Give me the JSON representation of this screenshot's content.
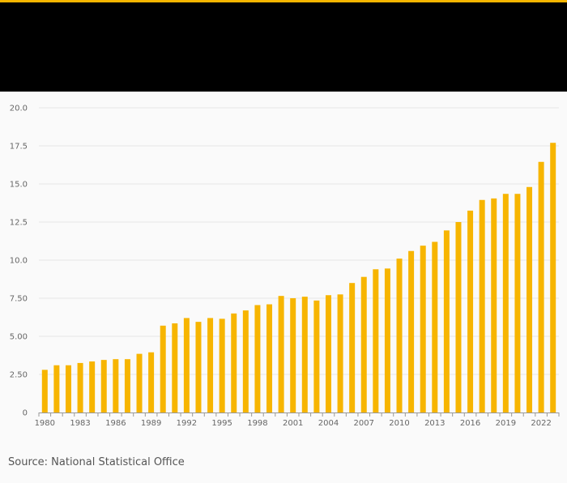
{
  "colors": {
    "accent": "#f7b500",
    "bar": "#f7b500",
    "header": "#000000",
    "grid": "#e6e6e6",
    "axis": "#999999"
  },
  "chart_data": {
    "type": "bar",
    "title": "",
    "xlabel": "",
    "ylabel": "",
    "ylim": [
      0,
      20
    ],
    "y_ticks": [
      "0",
      "2.50",
      "5.00",
      "7.50",
      "10.0",
      "12.5",
      "15.0",
      "17.5",
      "20.0"
    ],
    "y_tick_values": [
      0,
      2.5,
      5,
      7.5,
      10,
      12.5,
      15,
      17.5,
      20
    ],
    "categories": [
      "1980",
      "1981",
      "1982",
      "1983",
      "1984",
      "1985",
      "1986",
      "1987",
      "1988",
      "1989",
      "1990",
      "1991",
      "1992",
      "1993",
      "1994",
      "1995",
      "1996",
      "1997",
      "1998",
      "1999",
      "2000",
      "2001",
      "2002",
      "2003",
      "2004",
      "2005",
      "2006",
      "2007",
      "2008",
      "2009",
      "2010",
      "2011",
      "2012",
      "2013",
      "2014",
      "2015",
      "2016",
      "2017",
      "2018",
      "2019",
      "2020",
      "2021",
      "2022",
      "2023"
    ],
    "x_tick_labels": [
      "1980",
      "1983",
      "1986",
      "1989",
      "1992",
      "1995",
      "1998",
      "2001",
      "2004",
      "2007",
      "2010",
      "2013",
      "2016",
      "2019",
      "2022"
    ],
    "values": [
      2.8,
      3.1,
      3.1,
      3.25,
      3.35,
      3.45,
      3.5,
      3.5,
      3.85,
      3.95,
      5.7,
      5.85,
      6.2,
      5.95,
      6.2,
      6.15,
      6.5,
      6.7,
      7.05,
      7.1,
      7.65,
      7.5,
      7.6,
      7.35,
      7.7,
      7.75,
      8.5,
      8.9,
      9.4,
      9.45,
      10.1,
      10.6,
      10.95,
      11.2,
      11.95,
      12.5,
      13.25,
      13.95,
      14.05,
      14.35,
      14.35,
      14.8,
      16.45,
      17.7
    ]
  },
  "source": {
    "text": "Source: National Statistical Office"
  }
}
